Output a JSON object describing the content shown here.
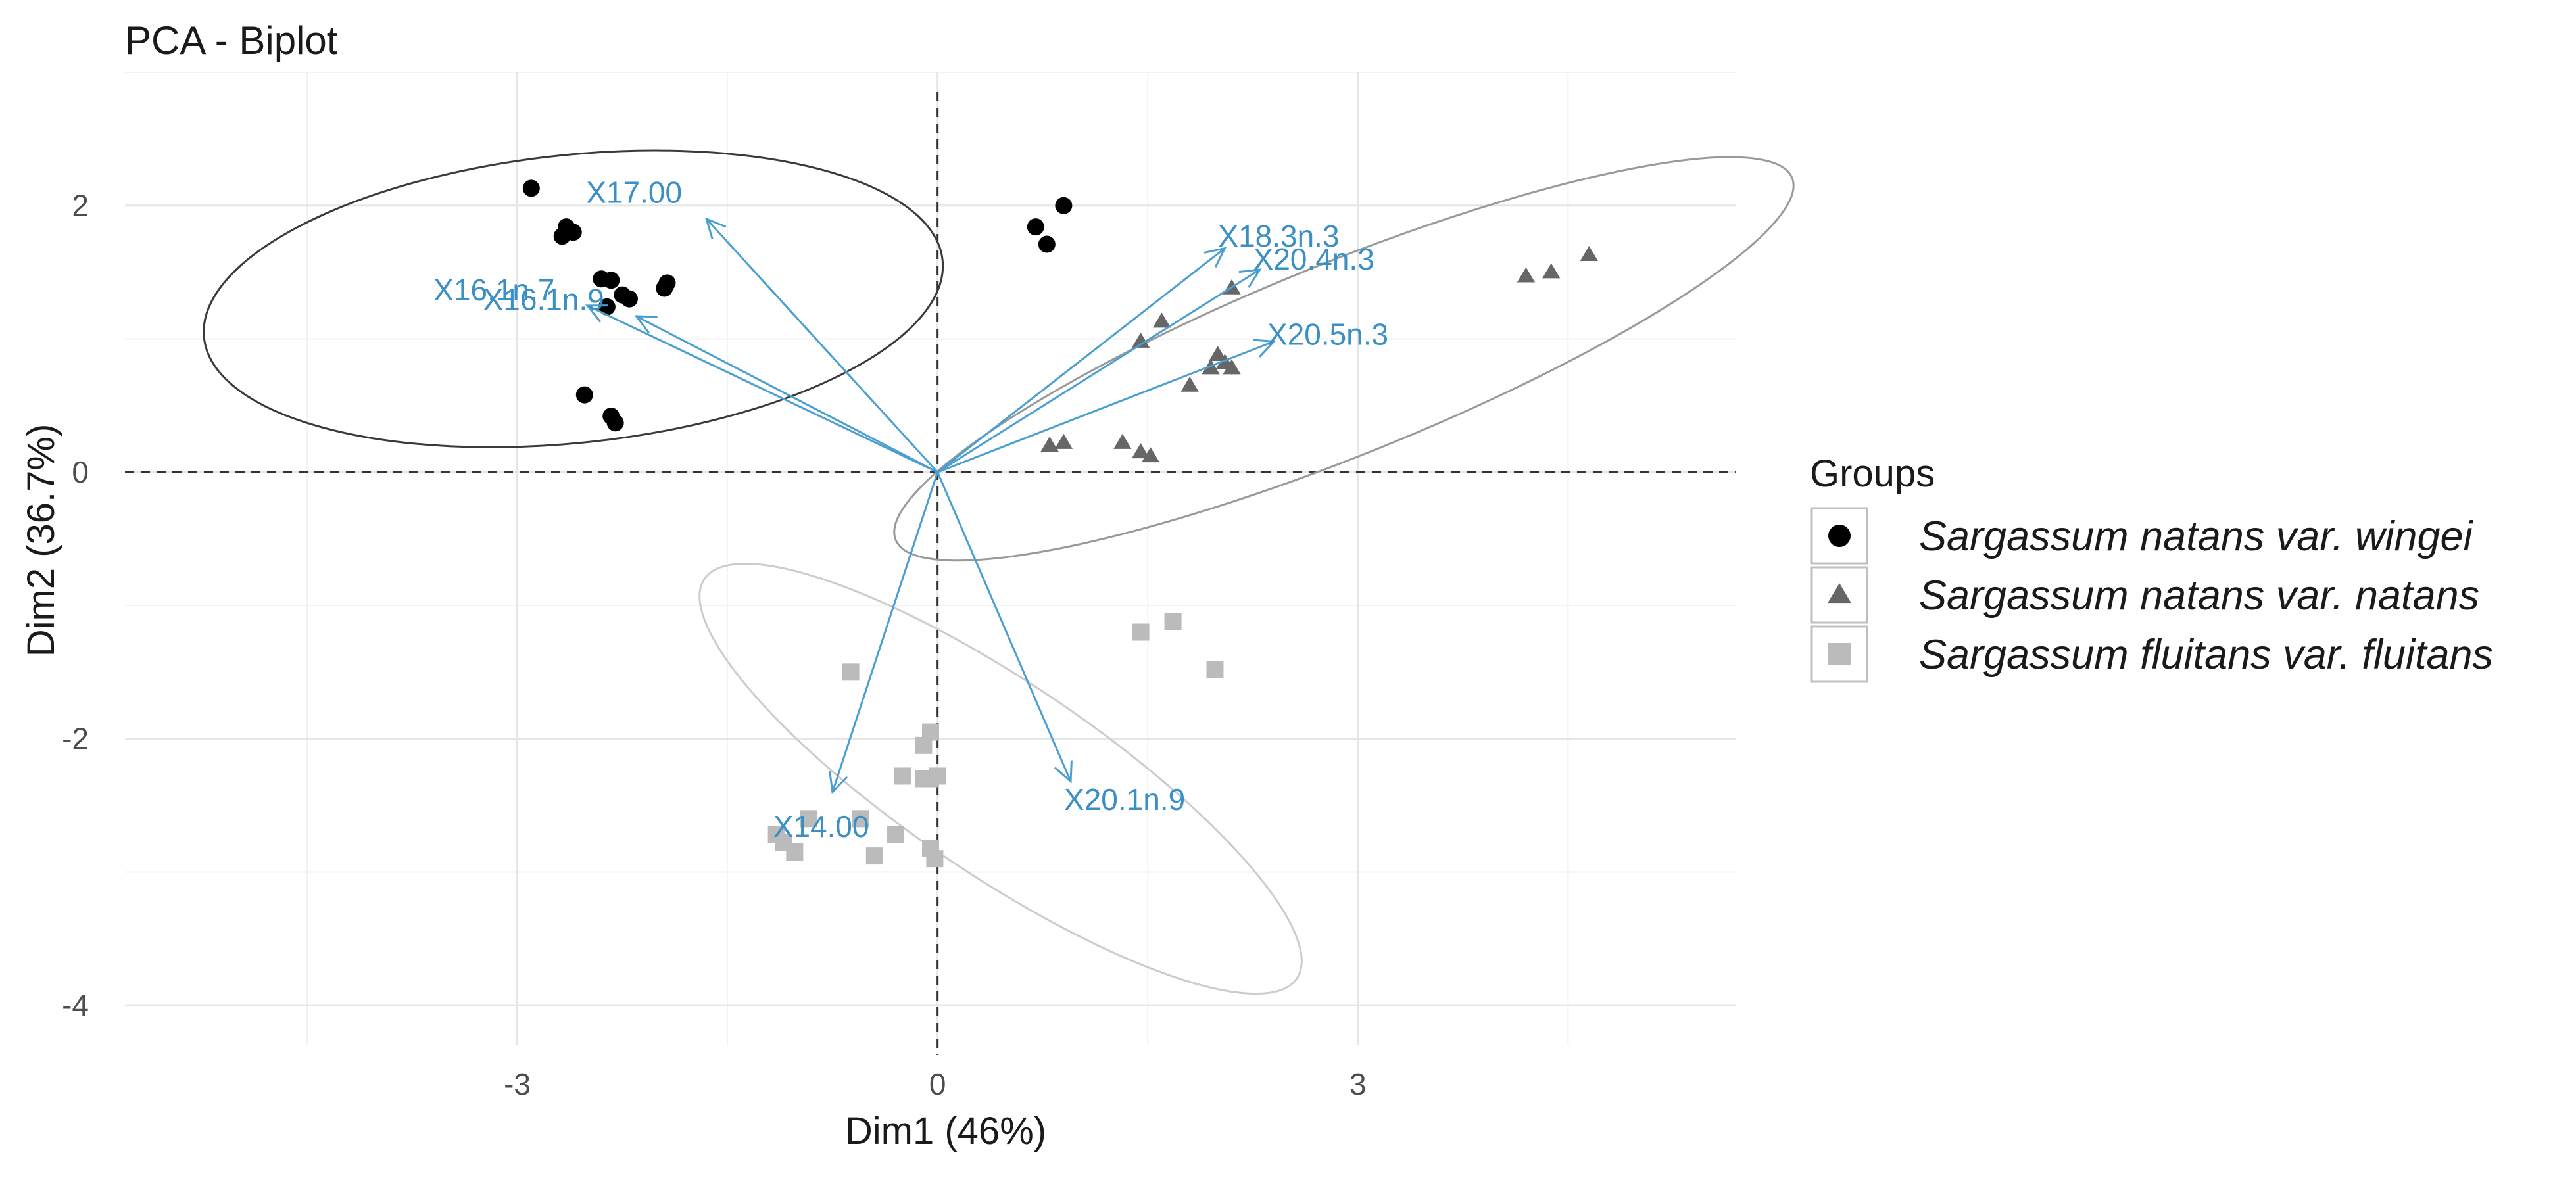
{
  "chart_data": {
    "type": "scatter",
    "title": "PCA - Biplot",
    "xlabel": "Dim1 (46%)",
    "ylabel": "Dim2 (36.7%)",
    "xlim": [
      -5.8,
      5.7
    ],
    "ylim": [
      -4.3,
      3.0
    ],
    "x_ticks": [
      -3,
      0,
      3
    ],
    "y_ticks": [
      -4,
      -2,
      0,
      2
    ],
    "x_tick_labels": [
      "-3",
      "0",
      "3"
    ],
    "y_tick_labels": [
      "-4",
      "-2",
      "0",
      "2"
    ],
    "grid": true,
    "legend": {
      "title": "Groups",
      "position": "right"
    },
    "colors": {
      "arrow": "#4a9fd0",
      "arrow_text": "#3a8fc4"
    },
    "groups": [
      {
        "name": "Sargassum natans var. wingei",
        "shape": "circle",
        "color": "#000000",
        "ellipse_color": "#3a3a3a",
        "ellipse": {
          "center": [
            -2.6,
            1.3
          ],
          "rx": 2.65,
          "ry": 1.08,
          "angle_deg": 6
        },
        "points": [
          [
            -2.9,
            2.13
          ],
          [
            -2.65,
            1.84
          ],
          [
            -2.6,
            1.8
          ],
          [
            -2.68,
            1.77
          ],
          [
            -2.4,
            1.45
          ],
          [
            -2.33,
            1.44
          ],
          [
            -1.93,
            1.42
          ],
          [
            -1.95,
            1.38
          ],
          [
            -2.25,
            1.33
          ],
          [
            -2.2,
            1.3
          ],
          [
            -2.36,
            1.24
          ],
          [
            -2.52,
            0.58
          ],
          [
            -2.33,
            0.42
          ],
          [
            -2.3,
            0.37
          ],
          [
            0.7,
            1.84
          ],
          [
            0.78,
            1.71
          ],
          [
            0.9,
            2.0
          ]
        ]
      },
      {
        "name": "Sargassum natans var. natans",
        "shape": "triangle",
        "color": "#666666",
        "ellipse_color": "#999999",
        "ellipse": {
          "center": [
            2.9,
            0.85
          ],
          "rx": 3.45,
          "ry": 0.72,
          "angle_deg": 22
        },
        "points": [
          [
            4.2,
            1.47
          ],
          [
            4.38,
            1.5
          ],
          [
            4.65,
            1.63
          ],
          [
            2.1,
            1.38
          ],
          [
            1.6,
            1.13
          ],
          [
            1.45,
            0.98
          ],
          [
            2.0,
            0.88
          ],
          [
            2.05,
            0.82
          ],
          [
            1.95,
            0.78
          ],
          [
            2.1,
            0.78
          ],
          [
            1.8,
            0.65
          ],
          [
            0.8,
            0.2
          ],
          [
            0.9,
            0.22
          ],
          [
            1.32,
            0.22
          ],
          [
            1.45,
            0.15
          ],
          [
            1.52,
            0.12
          ]
        ]
      },
      {
        "name": "Sargassum fluitans var. fluitans",
        "shape": "square",
        "color": "#bbbbbb",
        "ellipse_color": "#cccccc",
        "ellipse": {
          "center": [
            0.45,
            -2.3
          ],
          "rx": 2.55,
          "ry": 0.72,
          "angle_deg": -34
        },
        "points": [
          [
            -0.62,
            -1.5
          ],
          [
            1.45,
            -1.2
          ],
          [
            1.68,
            -1.12
          ],
          [
            1.98,
            -1.48
          ],
          [
            -0.05,
            -1.95
          ],
          [
            -0.1,
            -2.05
          ],
          [
            -0.25,
            -2.28
          ],
          [
            -0.1,
            -2.3
          ],
          [
            -0.05,
            -2.3
          ],
          [
            0.0,
            -2.28
          ],
          [
            -0.92,
            -2.6
          ],
          [
            -0.55,
            -2.6
          ],
          [
            -0.3,
            -2.72
          ],
          [
            -1.1,
            -2.78
          ],
          [
            -1.02,
            -2.85
          ],
          [
            -0.45,
            -2.88
          ],
          [
            -0.05,
            -2.82
          ],
          [
            -0.02,
            -2.9
          ],
          [
            -1.15,
            -2.72
          ]
        ]
      }
    ],
    "variables": [
      {
        "name": "X17.00",
        "x": -1.65,
        "y": 1.9
      },
      {
        "name": "X16.1n.9",
        "x": -2.15,
        "y": 1.17
      },
      {
        "name": "X16.1n.7",
        "x": -2.5,
        "y": 1.25
      },
      {
        "name": "X18.3n.3",
        "x": 2.05,
        "y": 1.68
      },
      {
        "name": "X20.4n.3",
        "x": 2.3,
        "y": 1.52
      },
      {
        "name": "X20.5n.3",
        "x": 2.4,
        "y": 0.98
      },
      {
        "name": "X14.00",
        "x": -0.75,
        "y": -2.4
      },
      {
        "name": "X20.1n.9",
        "x": 0.95,
        "y": -2.32
      }
    ]
  }
}
